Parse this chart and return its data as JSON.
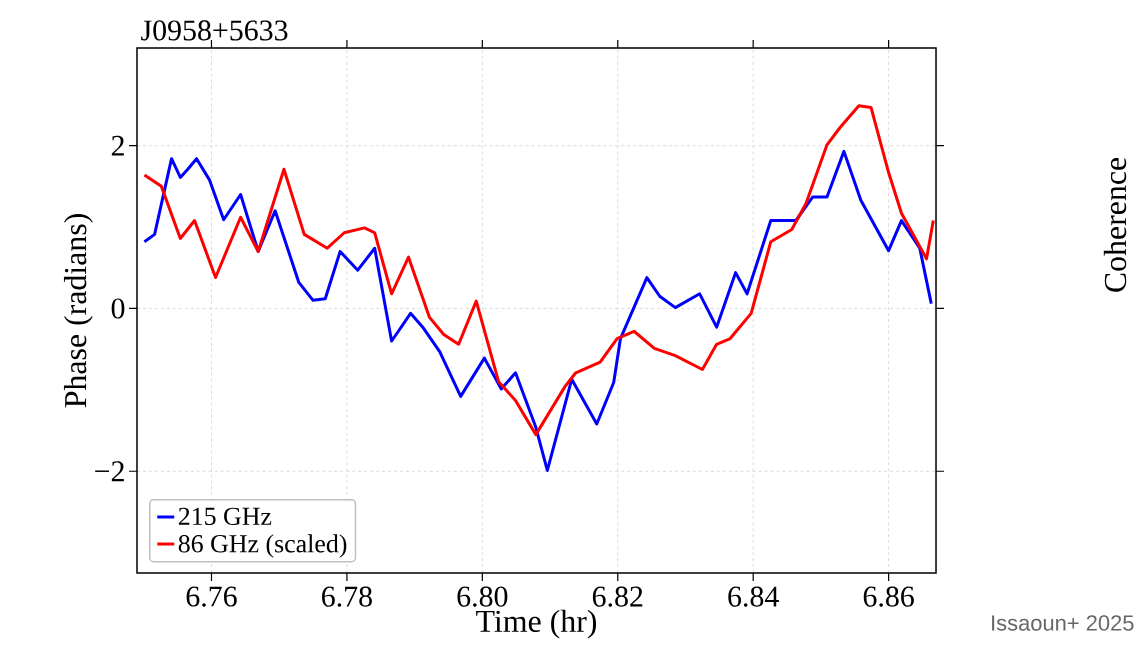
{
  "chart_data": {
    "type": "line",
    "title": "J0958+5633",
    "xlabel": "Time (hr)",
    "ylabel": "Phase (radians)",
    "annotations": [
      "Coherence",
      "Issaoun+ 2025"
    ],
    "xlim": [
      6.749,
      6.867
    ],
    "ylim": [
      -3.25,
      3.2
    ],
    "xticks": [
      6.76,
      6.78,
      {
        "value": 6.8,
        "label": "6.80"
      },
      6.82,
      6.84,
      6.86
    ],
    "yticks": [
      {
        "value": -2,
        "label": "−2"
      },
      0,
      2
    ],
    "grid": true,
    "legend": "bottom left",
    "marker": "none",
    "line_style": "solid",
    "series": [
      {
        "name": "215 GHz",
        "color": "#0000ff",
        "x": [
          6.7501,
          6.7516,
          6.7541,
          6.7554,
          6.7565,
          6.7578,
          6.7597,
          6.7618,
          6.7643,
          6.7669,
          6.7694,
          6.7729,
          6.775,
          6.7768,
          6.779,
          6.7816,
          6.7841,
          6.7866,
          6.7876,
          6.7894,
          6.7912,
          6.7937,
          6.7968,
          6.8003,
          6.8028,
          6.8049,
          6.8079,
          6.8096,
          6.8132,
          6.8169,
          6.8194,
          6.8204,
          6.8243,
          6.8262,
          6.8285,
          6.8321,
          6.8346,
          6.8374,
          6.8391,
          6.8426,
          6.8463,
          6.8488,
          6.8509,
          6.8534,
          6.8559,
          6.86,
          6.8619,
          6.8646,
          6.8663
        ],
        "values": [
          0.82,
          0.91,
          1.84,
          1.61,
          1.71,
          1.84,
          1.58,
          1.09,
          1.4,
          0.7,
          1.2,
          0.32,
          0.1,
          0.12,
          0.7,
          0.47,
          0.74,
          -0.4,
          -0.28,
          -0.06,
          -0.23,
          -0.53,
          -1.08,
          -0.61,
          -0.99,
          -0.79,
          -1.46,
          -1.99,
          -0.87,
          -1.42,
          -0.91,
          -0.37,
          0.38,
          0.15,
          0.01,
          0.18,
          -0.23,
          0.44,
          0.18,
          1.08,
          1.08,
          1.37,
          1.37,
          1.93,
          1.33,
          0.71,
          1.08,
          0.74,
          0.06
        ]
      },
      {
        "name": "86 GHz (scaled)",
        "color": "#ff0000",
        "x": [
          6.7501,
          6.7526,
          6.7554,
          6.7575,
          6.7606,
          6.7643,
          6.7669,
          6.7707,
          6.7737,
          6.7771,
          6.7796,
          6.7826,
          6.7841,
          6.7866,
          6.7891,
          6.7922,
          6.7943,
          6.7965,
          6.7991,
          6.8024,
          6.8049,
          6.8079,
          6.8122,
          6.8138,
          6.8174,
          6.8199,
          6.8224,
          6.8254,
          6.8285,
          6.8325,
          6.8346,
          6.8366,
          6.8397,
          6.8426,
          6.8457,
          6.8478,
          6.8509,
          6.8528,
          6.8556,
          6.8574,
          6.86,
          6.8619,
          6.8656,
          6.8666
        ],
        "values": [
          1.64,
          1.5,
          0.86,
          1.08,
          0.38,
          1.12,
          0.7,
          1.71,
          0.91,
          0.74,
          0.93,
          0.99,
          0.93,
          0.18,
          0.63,
          -0.11,
          -0.32,
          -0.44,
          0.09,
          -0.9,
          -1.13,
          -1.55,
          -0.96,
          -0.79,
          -0.66,
          -0.37,
          -0.28,
          -0.49,
          -0.58,
          -0.75,
          -0.44,
          -0.37,
          -0.06,
          0.82,
          0.97,
          1.29,
          2.01,
          2.22,
          2.49,
          2.47,
          1.67,
          1.17,
          0.61,
          1.08
        ]
      }
    ]
  }
}
